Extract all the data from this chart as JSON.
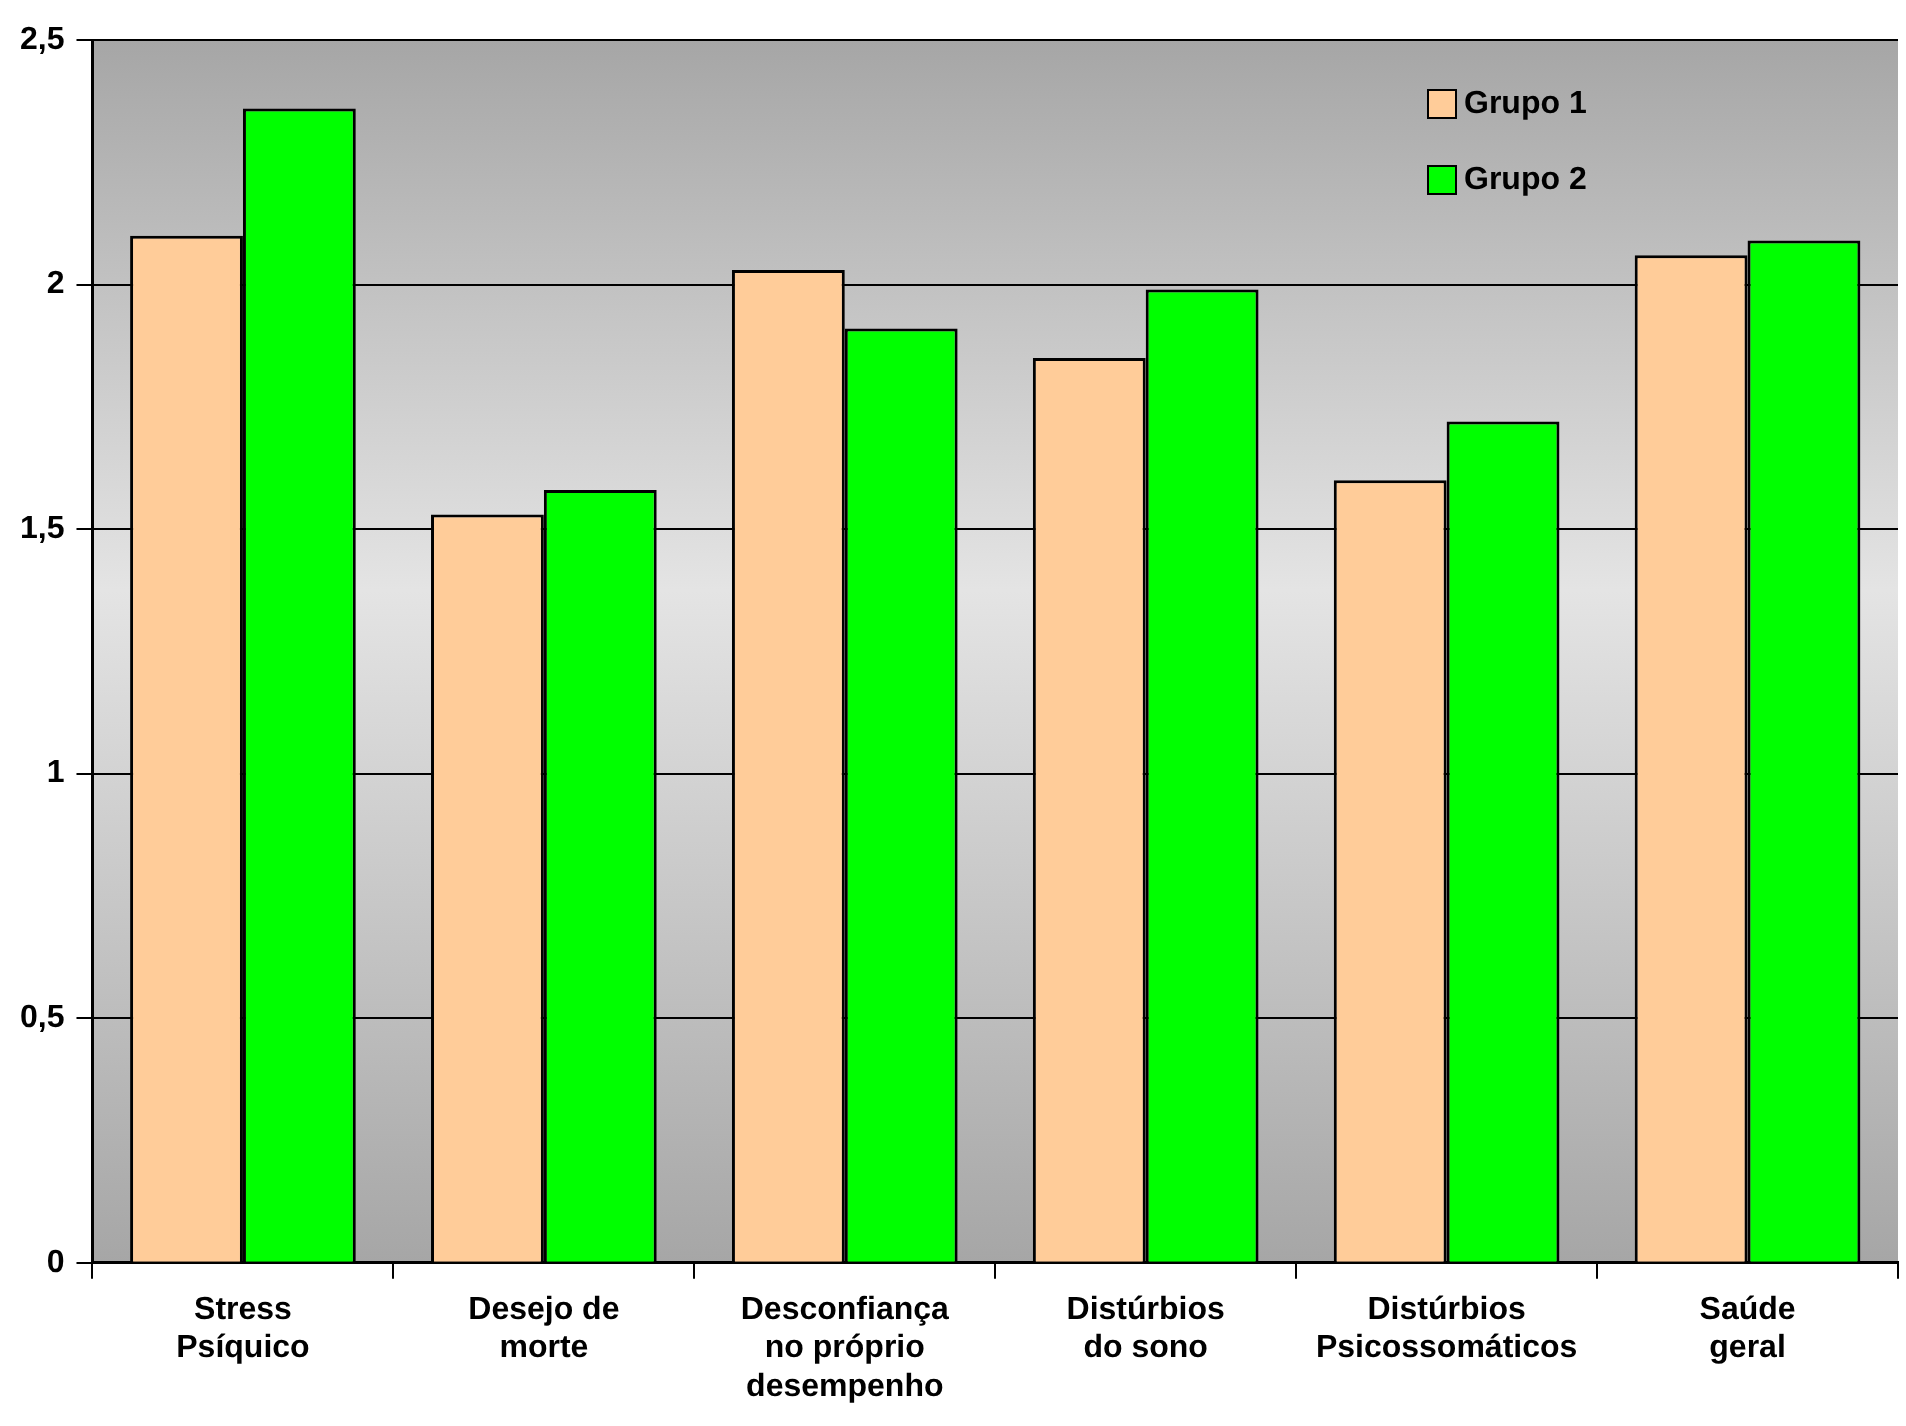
{
  "chart_data": {
    "type": "bar",
    "categories": [
      "Stress\nPsíquico",
      "Desejo de\nmorte",
      "Desconfiança\nno próprio\ndesempenho",
      "Distúrbios\ndo sono",
      "Distúrbios\nPsicossomáticos",
      "Saúde\ngeral"
    ],
    "series": [
      {
        "name": "Grupo 1",
        "color": "#ffcc99",
        "values": [
          2.1,
          1.53,
          2.03,
          1.85,
          1.6,
          2.06
        ]
      },
      {
        "name": "Grupo 2",
        "color": "#00ff00",
        "values": [
          2.36,
          1.58,
          1.91,
          1.99,
          1.72,
          2.09
        ]
      }
    ],
    "ylim": [
      0,
      2.5
    ],
    "yticks": [
      0,
      {
        "value": 0.5,
        "label": "0,5"
      },
      1,
      {
        "value": 1.5,
        "label": "1,5"
      },
      2,
      {
        "value": 2.5,
        "label": "2,5"
      }
    ],
    "grid": "y",
    "legend": "top right"
  }
}
